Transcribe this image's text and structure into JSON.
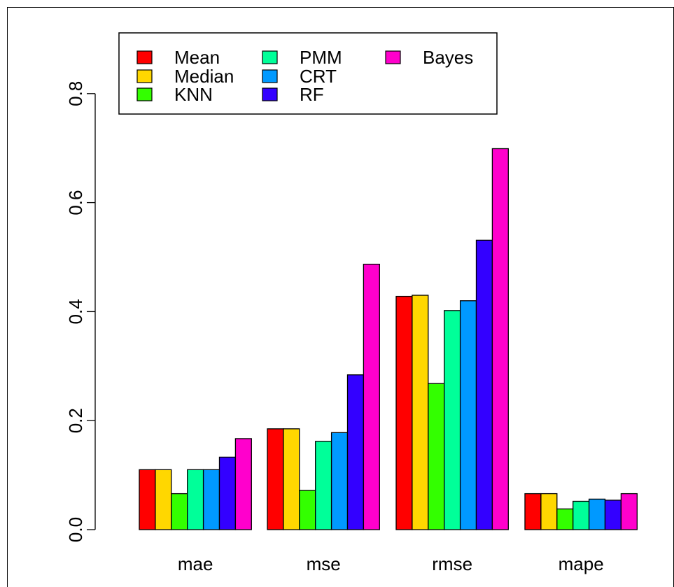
{
  "chart_data": {
    "type": "bar",
    "categories": [
      "mae",
      "mse",
      "rmse",
      "mape"
    ],
    "series": [
      {
        "name": "Mean",
        "color": "#FF0000",
        "values": [
          0.11,
          0.185,
          0.428,
          0.066
        ]
      },
      {
        "name": "Median",
        "color": "#FFD700",
        "values": [
          0.11,
          0.185,
          0.43,
          0.066
        ]
      },
      {
        "name": "KNN",
        "color": "#33FF00",
        "values": [
          0.066,
          0.072,
          0.268,
          0.038
        ]
      },
      {
        "name": "PMM",
        "color": "#00FF99",
        "values": [
          0.11,
          0.162,
          0.402,
          0.052
        ]
      },
      {
        "name": "CRT",
        "color": "#0099FF",
        "values": [
          0.11,
          0.178,
          0.42,
          0.056
        ]
      },
      {
        "name": "RF",
        "color": "#3300FF",
        "values": [
          0.133,
          0.284,
          0.531,
          0.054
        ]
      },
      {
        "name": "Bayes",
        "color": "#FF00CC",
        "values": [
          0.167,
          0.487,
          0.699,
          0.066
        ]
      }
    ],
    "yticks": [
      "0.0",
      "0.2",
      "0.4",
      "0.6",
      "0.8"
    ],
    "ylim": [
      0,
      0.9
    ],
    "title": "",
    "xlabel": "",
    "ylabel": "",
    "legend_position": "top-left",
    "grid": false
  }
}
